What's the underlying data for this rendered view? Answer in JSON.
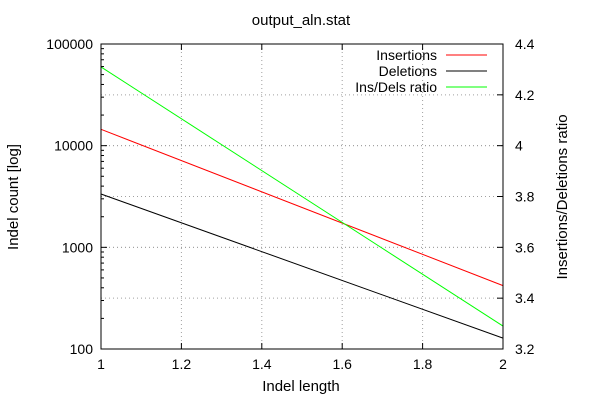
{
  "chart_data": {
    "type": "line",
    "title": "output_aln.stat",
    "xlabel": "Indel length",
    "ylabel": "Indel count [log]",
    "y2label": "Insertions/Deletions ratio",
    "xlim": [
      1,
      2
    ],
    "ylim": [
      100,
      100000
    ],
    "yscale": "log",
    "y2lim": [
      3.2,
      4.4
    ],
    "x_ticks": [
      "1",
      "1.2",
      "1.4",
      "1.6",
      "1.8",
      "2"
    ],
    "y_ticks": [
      "100",
      "1000",
      "10000",
      "100000"
    ],
    "y2_ticks": [
      "3.2",
      "3.4",
      "3.6",
      "3.8",
      "4",
      "4.2",
      "4.4"
    ],
    "grid": true,
    "legend_position": "top-right",
    "series": [
      {
        "name": "Insertions",
        "axis": "y1",
        "color": "#ff0000",
        "x": [
          1,
          2
        ],
        "y": [
          14500,
          420
        ]
      },
      {
        "name": "Deletions",
        "axis": "y1",
        "color": "#000000",
        "x": [
          1,
          2
        ],
        "y": [
          3350,
          128
        ]
      },
      {
        "name": "Ins/Dels ratio",
        "axis": "y2",
        "color": "#00ff00",
        "x": [
          1,
          2
        ],
        "y": [
          4.31,
          3.29
        ]
      }
    ]
  }
}
